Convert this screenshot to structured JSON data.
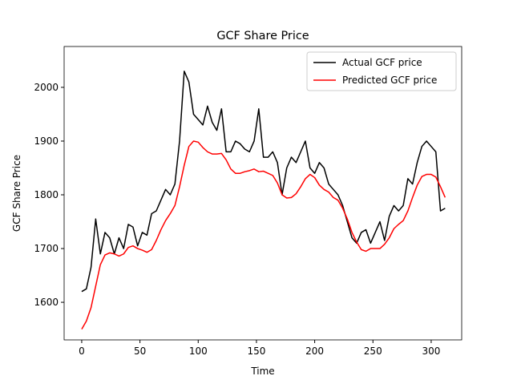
{
  "chart_data": {
    "type": "line",
    "title": "GCF Share Price",
    "x_label": "Time",
    "y_label": "GCF Share Price",
    "x": [
      0,
      4,
      8,
      12,
      16,
      20,
      24,
      28,
      32,
      36,
      40,
      44,
      48,
      52,
      56,
      60,
      64,
      68,
      72,
      76,
      80,
      84,
      88,
      92,
      96,
      100,
      104,
      108,
      112,
      116,
      120,
      124,
      128,
      132,
      136,
      140,
      144,
      148,
      152,
      156,
      160,
      164,
      168,
      172,
      176,
      180,
      184,
      188,
      192,
      196,
      200,
      204,
      208,
      212,
      216,
      220,
      224,
      228,
      232,
      236,
      240,
      244,
      248,
      252,
      256,
      260,
      264,
      268,
      272,
      276,
      280,
      284,
      288,
      292,
      296,
      300,
      304,
      308,
      312
    ],
    "series": [
      {
        "name": "Actual GCF price",
        "color": "#000000",
        "values": [
          1620,
          1625,
          1665,
          1755,
          1690,
          1730,
          1720,
          1690,
          1720,
          1700,
          1745,
          1740,
          1705,
          1730,
          1725,
          1765,
          1770,
          1790,
          1810,
          1800,
          1820,
          1900,
          2030,
          2010,
          1950,
          1940,
          1930,
          1965,
          1935,
          1920,
          1960,
          1880,
          1880,
          1900,
          1895,
          1885,
          1880,
          1900,
          1960,
          1870,
          1870,
          1880,
          1860,
          1800,
          1850,
          1870,
          1860,
          1880,
          1900,
          1850,
          1840,
          1860,
          1850,
          1820,
          1810,
          1800,
          1780,
          1750,
          1720,
          1710,
          1730,
          1735,
          1710,
          1730,
          1750,
          1715,
          1760,
          1780,
          1770,
          1780,
          1830,
          1820,
          1860,
          1890,
          1900,
          1890,
          1880,
          1770,
          1775
        ]
      },
      {
        "name": "Predicted GCF price",
        "color": "#ff0000",
        "values": [
          1550,
          1565,
          1590,
          1630,
          1670,
          1688,
          1692,
          1690,
          1686,
          1690,
          1702,
          1705,
          1700,
          1697,
          1693,
          1698,
          1715,
          1735,
          1752,
          1765,
          1780,
          1815,
          1855,
          1890,
          1900,
          1898,
          1888,
          1880,
          1876,
          1876,
          1877,
          1865,
          1848,
          1840,
          1840,
          1843,
          1845,
          1848,
          1843,
          1844,
          1840,
          1836,
          1822,
          1800,
          1794,
          1795,
          1802,
          1815,
          1830,
          1838,
          1832,
          1818,
          1810,
          1805,
          1795,
          1790,
          1775,
          1755,
          1730,
          1712,
          1698,
          1695,
          1700,
          1700,
          1700,
          1708,
          1720,
          1737,
          1745,
          1752,
          1770,
          1795,
          1818,
          1834,
          1838,
          1838,
          1833,
          1815,
          1795
        ]
      }
    ],
    "xlim": [
      -15.1,
      326.2
    ],
    "ylim": [
      1530,
      2076
    ],
    "xticks": [
      0,
      50,
      100,
      150,
      200,
      250,
      300
    ],
    "yticks": [
      1600,
      1700,
      1800,
      1900,
      2000
    ],
    "legend": "upper right"
  }
}
